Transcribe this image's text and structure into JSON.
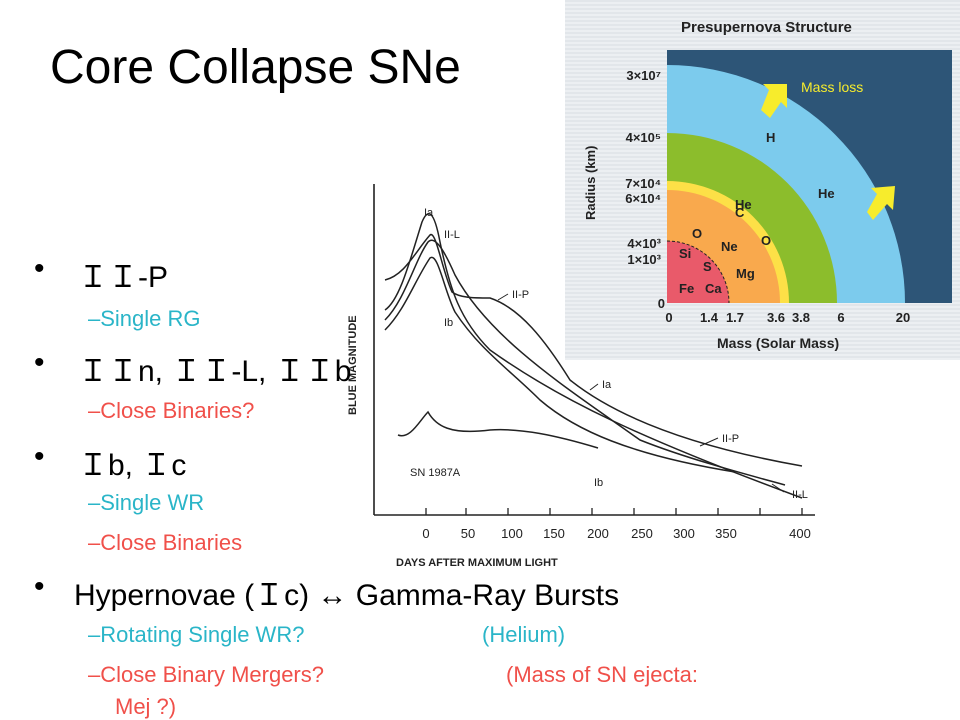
{
  "slide": {
    "title": "Core Collapse SNe",
    "items": [
      {
        "label": "ＩＩ-P",
        "subs": [
          "–Single RG"
        ]
      },
      {
        "label": "ＩＩn, ＩＩ-L, ＩＩb",
        "subs": [
          "–Close Binaries?"
        ]
      },
      {
        "label": "Ｉb, Ｉc",
        "subs": [
          "–Single WR",
          "–Close Binaries"
        ]
      },
      {
        "label": "Hypernovae (Ｉc) ↔ Gamma-Ray Bursts",
        "subs": [
          "–Rotating Single WR?",
          "(Helium)",
          "–Close Binary Mergers?",
          "(Mass of SN ejecta:",
          "Mej ?)"
        ]
      }
    ],
    "bullet_char": "•"
  },
  "light_curve": {
    "xlabel": "DAYS AFTER MAXIMUM LIGHT",
    "ylabel": "BLUE MAGNITUDE",
    "xticks": [
      "0",
      "50",
      "100",
      "150",
      "200",
      "250",
      "300",
      "350",
      "400"
    ],
    "labels": {
      "ia_top": "Ia",
      "iil_top": "II-L",
      "iip_mid": "II-P",
      "ib_mid": "Ib",
      "ia_mid": "Ia",
      "iip_end": "II-P",
      "ib_end": "Ib",
      "iil_end": "II-L",
      "sn": "SN 1987A"
    }
  },
  "structure": {
    "title": "Presupernova Structure",
    "ylabel": "Radius (km)",
    "xlabel": "Mass (Solar Mass)",
    "mass_loss": "Mass loss",
    "yticks": [
      "3×10⁷",
      "4×10⁵",
      "7×10⁴",
      "6×10⁴",
      "4×10³",
      "1×10³",
      "0"
    ],
    "xticks": [
      "0",
      "1.4",
      "1.7",
      "3.6",
      "3.8",
      "6",
      "20"
    ],
    "layers": [
      "H",
      "He",
      "He",
      "C",
      "O",
      "O",
      "Ne",
      "Mg",
      "Si",
      "S",
      "Ca",
      "Fe"
    ],
    "colors": {
      "bg": "#2d5577",
      "h": "#7ccbed",
      "he": "#8cbd2c",
      "c": "#fde047",
      "o": "#f9a94d",
      "si": "#e95a6a",
      "arrow": "#f7ec2c"
    }
  }
}
